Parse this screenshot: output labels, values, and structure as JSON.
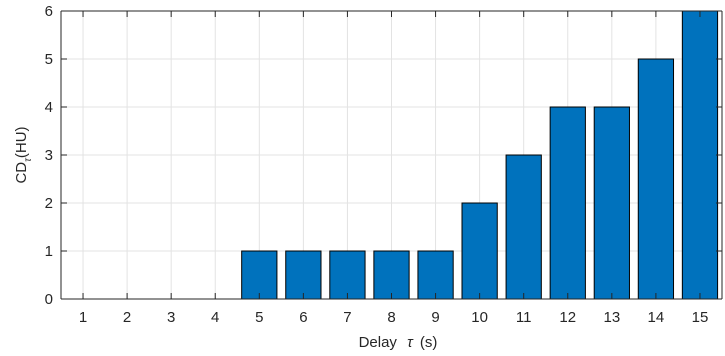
{
  "chart_data": {
    "type": "bar",
    "categories": [
      "1",
      "2",
      "3",
      "4",
      "5",
      "6",
      "7",
      "8",
      "9",
      "10",
      "11",
      "12",
      "13",
      "14",
      "15"
    ],
    "values": [
      0,
      0,
      0,
      0,
      1,
      1,
      1,
      1,
      1,
      2,
      3,
      4,
      4,
      5,
      6
    ],
    "xlabel_prefix": "Delay",
    "xlabel_symbol": "τ",
    "xlabel_unit": "(s)",
    "ylabel_main": "CD",
    "ylabel_sub": "τ",
    "ylabel_unit": "(HU)",
    "yticks": [
      "0",
      "1",
      "2",
      "3",
      "4",
      "5",
      "6"
    ],
    "ylim": [
      0,
      6
    ],
    "xlim": [
      0.5,
      15.5
    ],
    "grid": true,
    "bar_color": "#0072BD",
    "bar_edge_color": "#000000"
  }
}
